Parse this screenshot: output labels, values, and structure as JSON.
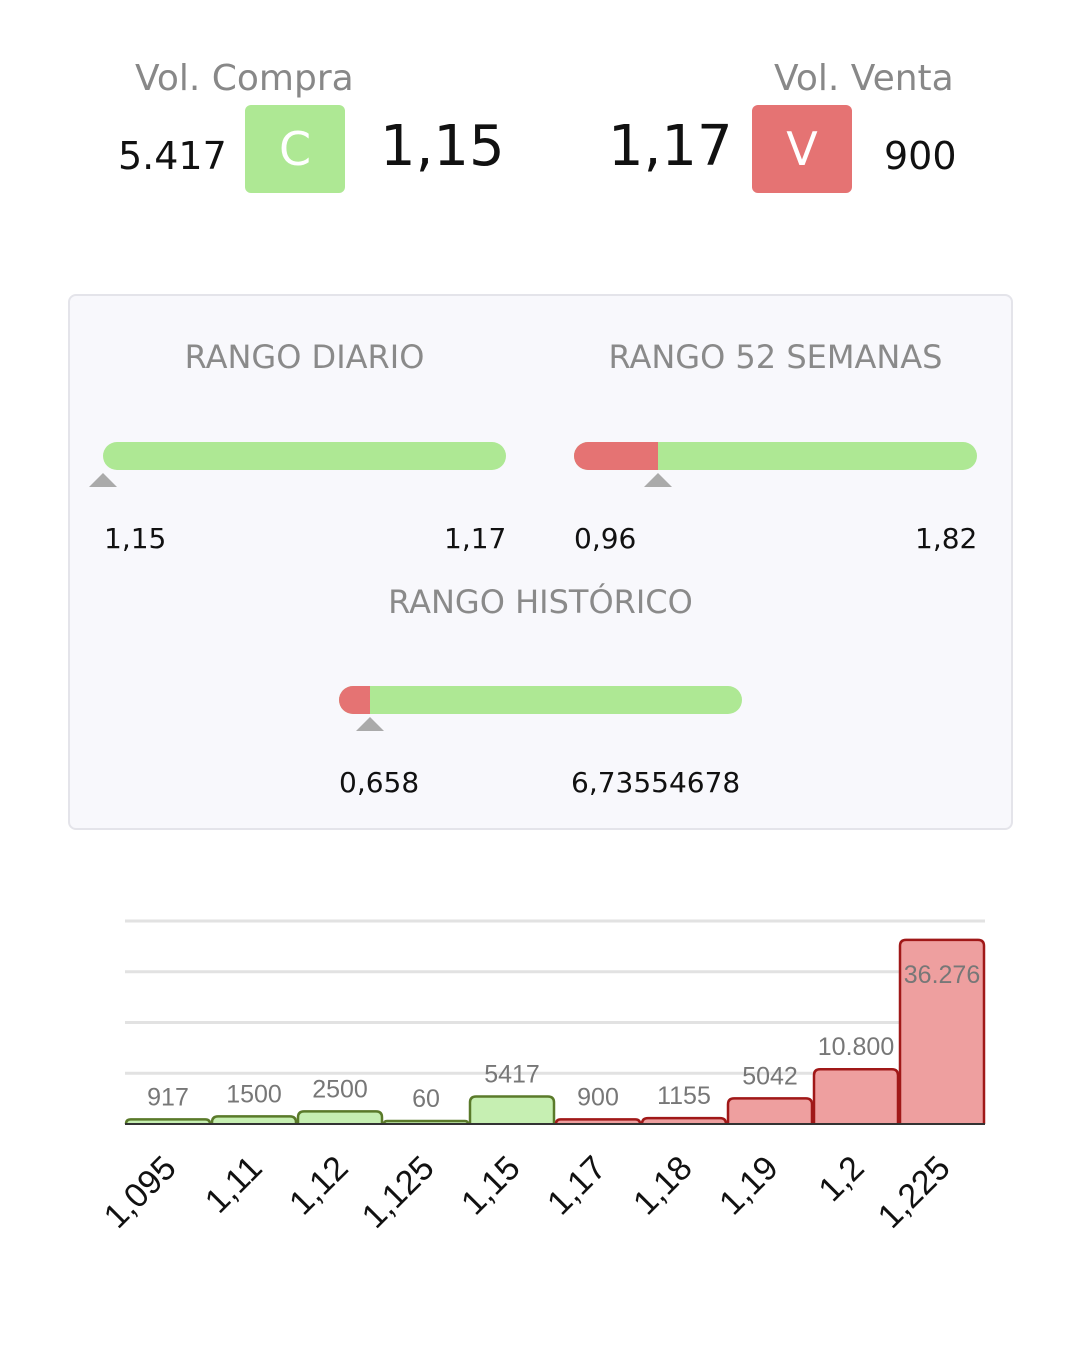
{
  "header": {
    "buy": {
      "label": "Vol. Compra",
      "volume": "5.417",
      "badge": "C",
      "price": "1,15",
      "color": "#aee894"
    },
    "sell": {
      "label": "Vol. Venta",
      "volume": "900",
      "badge": "V",
      "price": "1,17",
      "color": "#e57373"
    }
  },
  "ranges": {
    "daily": {
      "title": "RANGO DIARIO",
      "min": "1,15",
      "max": "1,17",
      "position": 0
    },
    "weeks52": {
      "title": "RANGO 52 SEMANAS",
      "min": "0,96",
      "max": "1,82",
      "position": 0.21
    },
    "historic": {
      "title": "RANGO HISTÓRICO",
      "min": "0,658",
      "max": "6,73554678",
      "position": 0.08
    }
  },
  "chart_data": {
    "type": "bar",
    "categories": [
      "1,095",
      "1,11",
      "1,12",
      "1,125",
      "1,15",
      "1,17",
      "1,18",
      "1,19",
      "1,2",
      "1,225"
    ],
    "values": [
      917,
      1500,
      2500,
      60,
      5417,
      900,
      1155,
      5042,
      10800,
      36276
    ],
    "value_labels": [
      "917",
      "1500",
      "2500",
      "60",
      "5417",
      "900",
      "1155",
      "5042",
      "10.800",
      "36.276"
    ],
    "sides": [
      "buy",
      "buy",
      "buy",
      "buy",
      "buy",
      "sell",
      "sell",
      "sell",
      "sell",
      "sell"
    ],
    "ylim": [
      0,
      40000
    ],
    "grid": true,
    "colors": {
      "buy_fill": "#c6efb2",
      "buy_stroke": "#5a7a2a",
      "sell_fill": "#ee9f9f",
      "sell_stroke": "#a01818"
    }
  }
}
